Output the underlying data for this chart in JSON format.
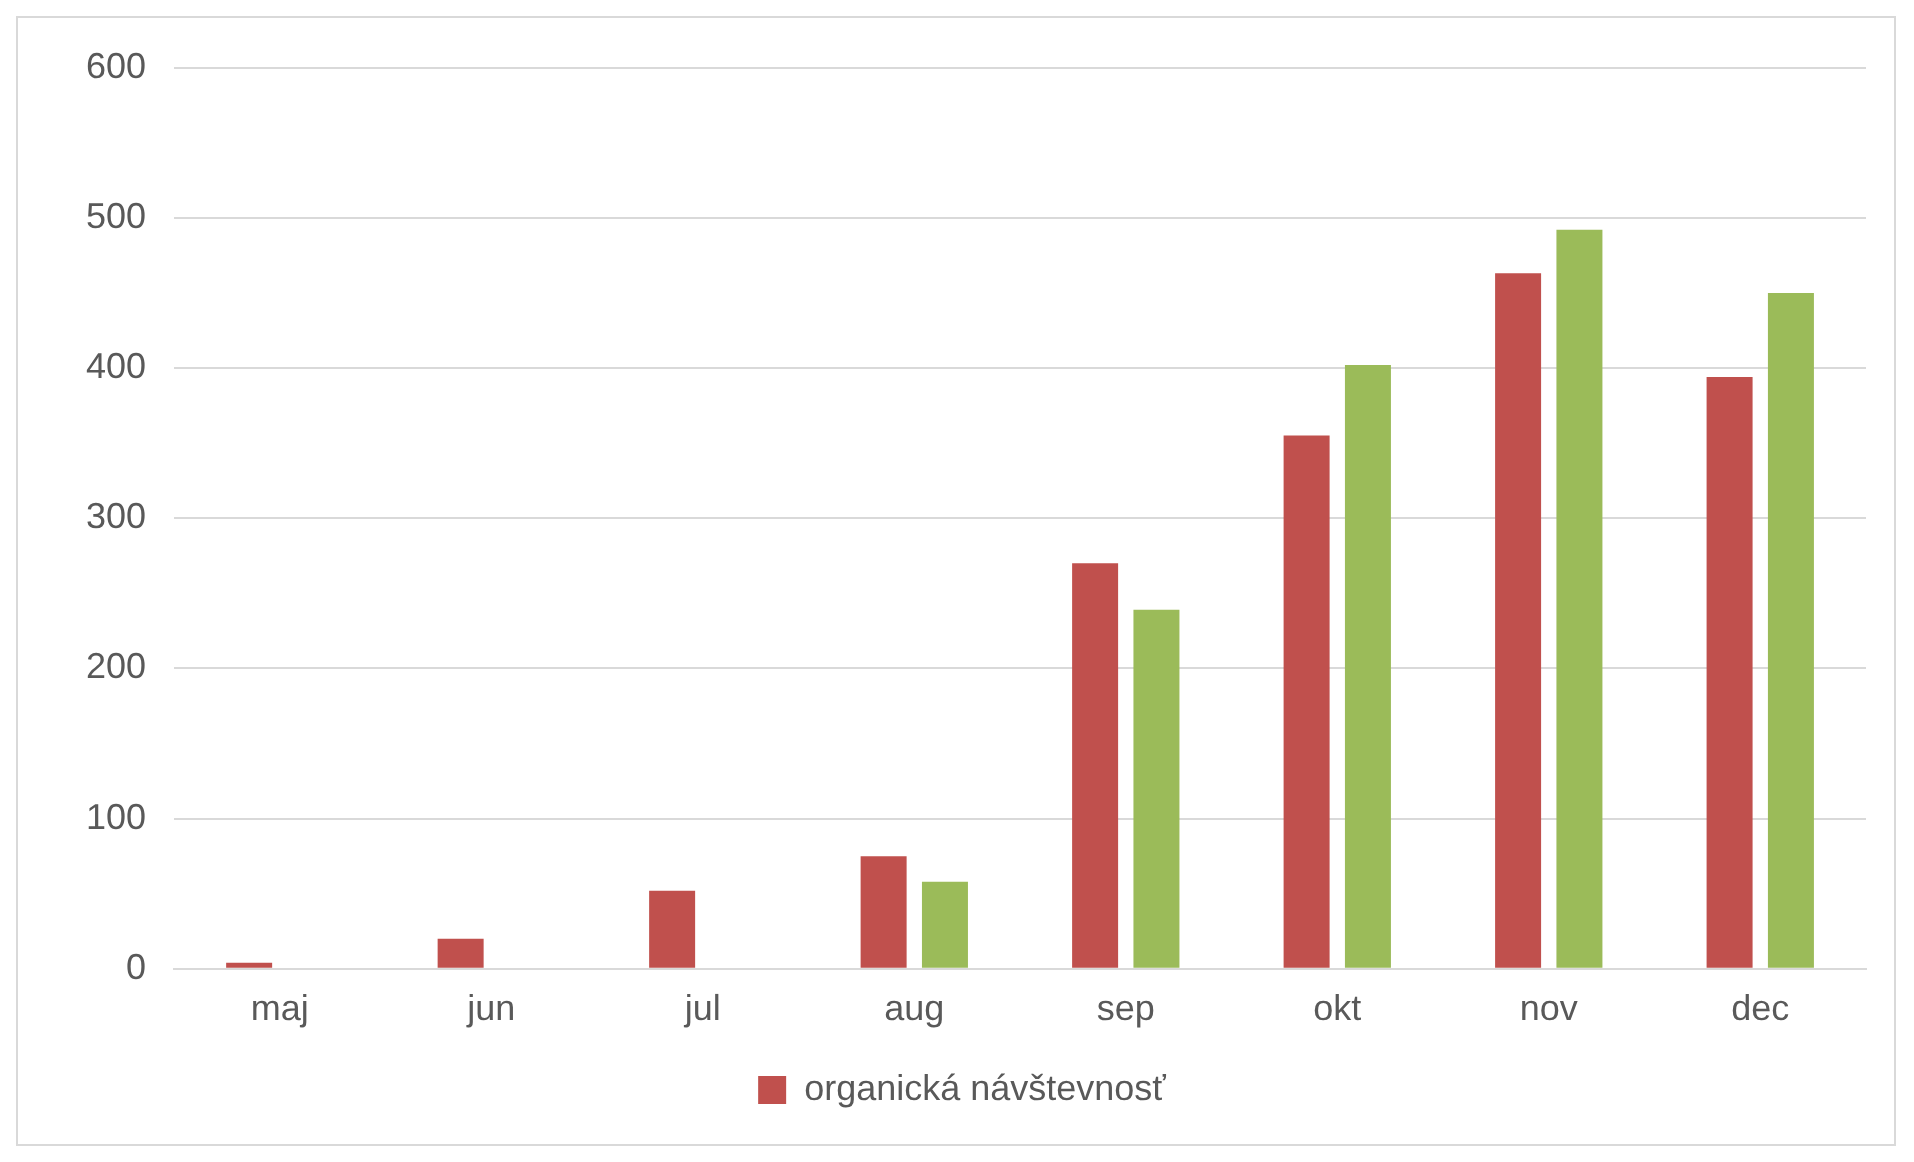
{
  "chart_data": {
    "type": "bar",
    "categories": [
      "maj",
      "jun",
      "jul",
      "aug",
      "sep",
      "okt",
      "nov",
      "dec"
    ],
    "series": [
      {
        "name": "organická návštevnosť",
        "color": "#c0504d",
        "values": [
          4,
          20,
          52,
          75,
          270,
          355,
          463,
          394
        ]
      },
      {
        "color": "#9bbb59",
        "values": [
          0,
          0,
          0,
          58,
          239,
          402,
          492,
          450
        ]
      }
    ],
    "ylim": [
      0,
      600
    ],
    "yticks": [
      0,
      100,
      200,
      300,
      400,
      500,
      600
    ],
    "grid": "y",
    "legend": "bottom"
  }
}
